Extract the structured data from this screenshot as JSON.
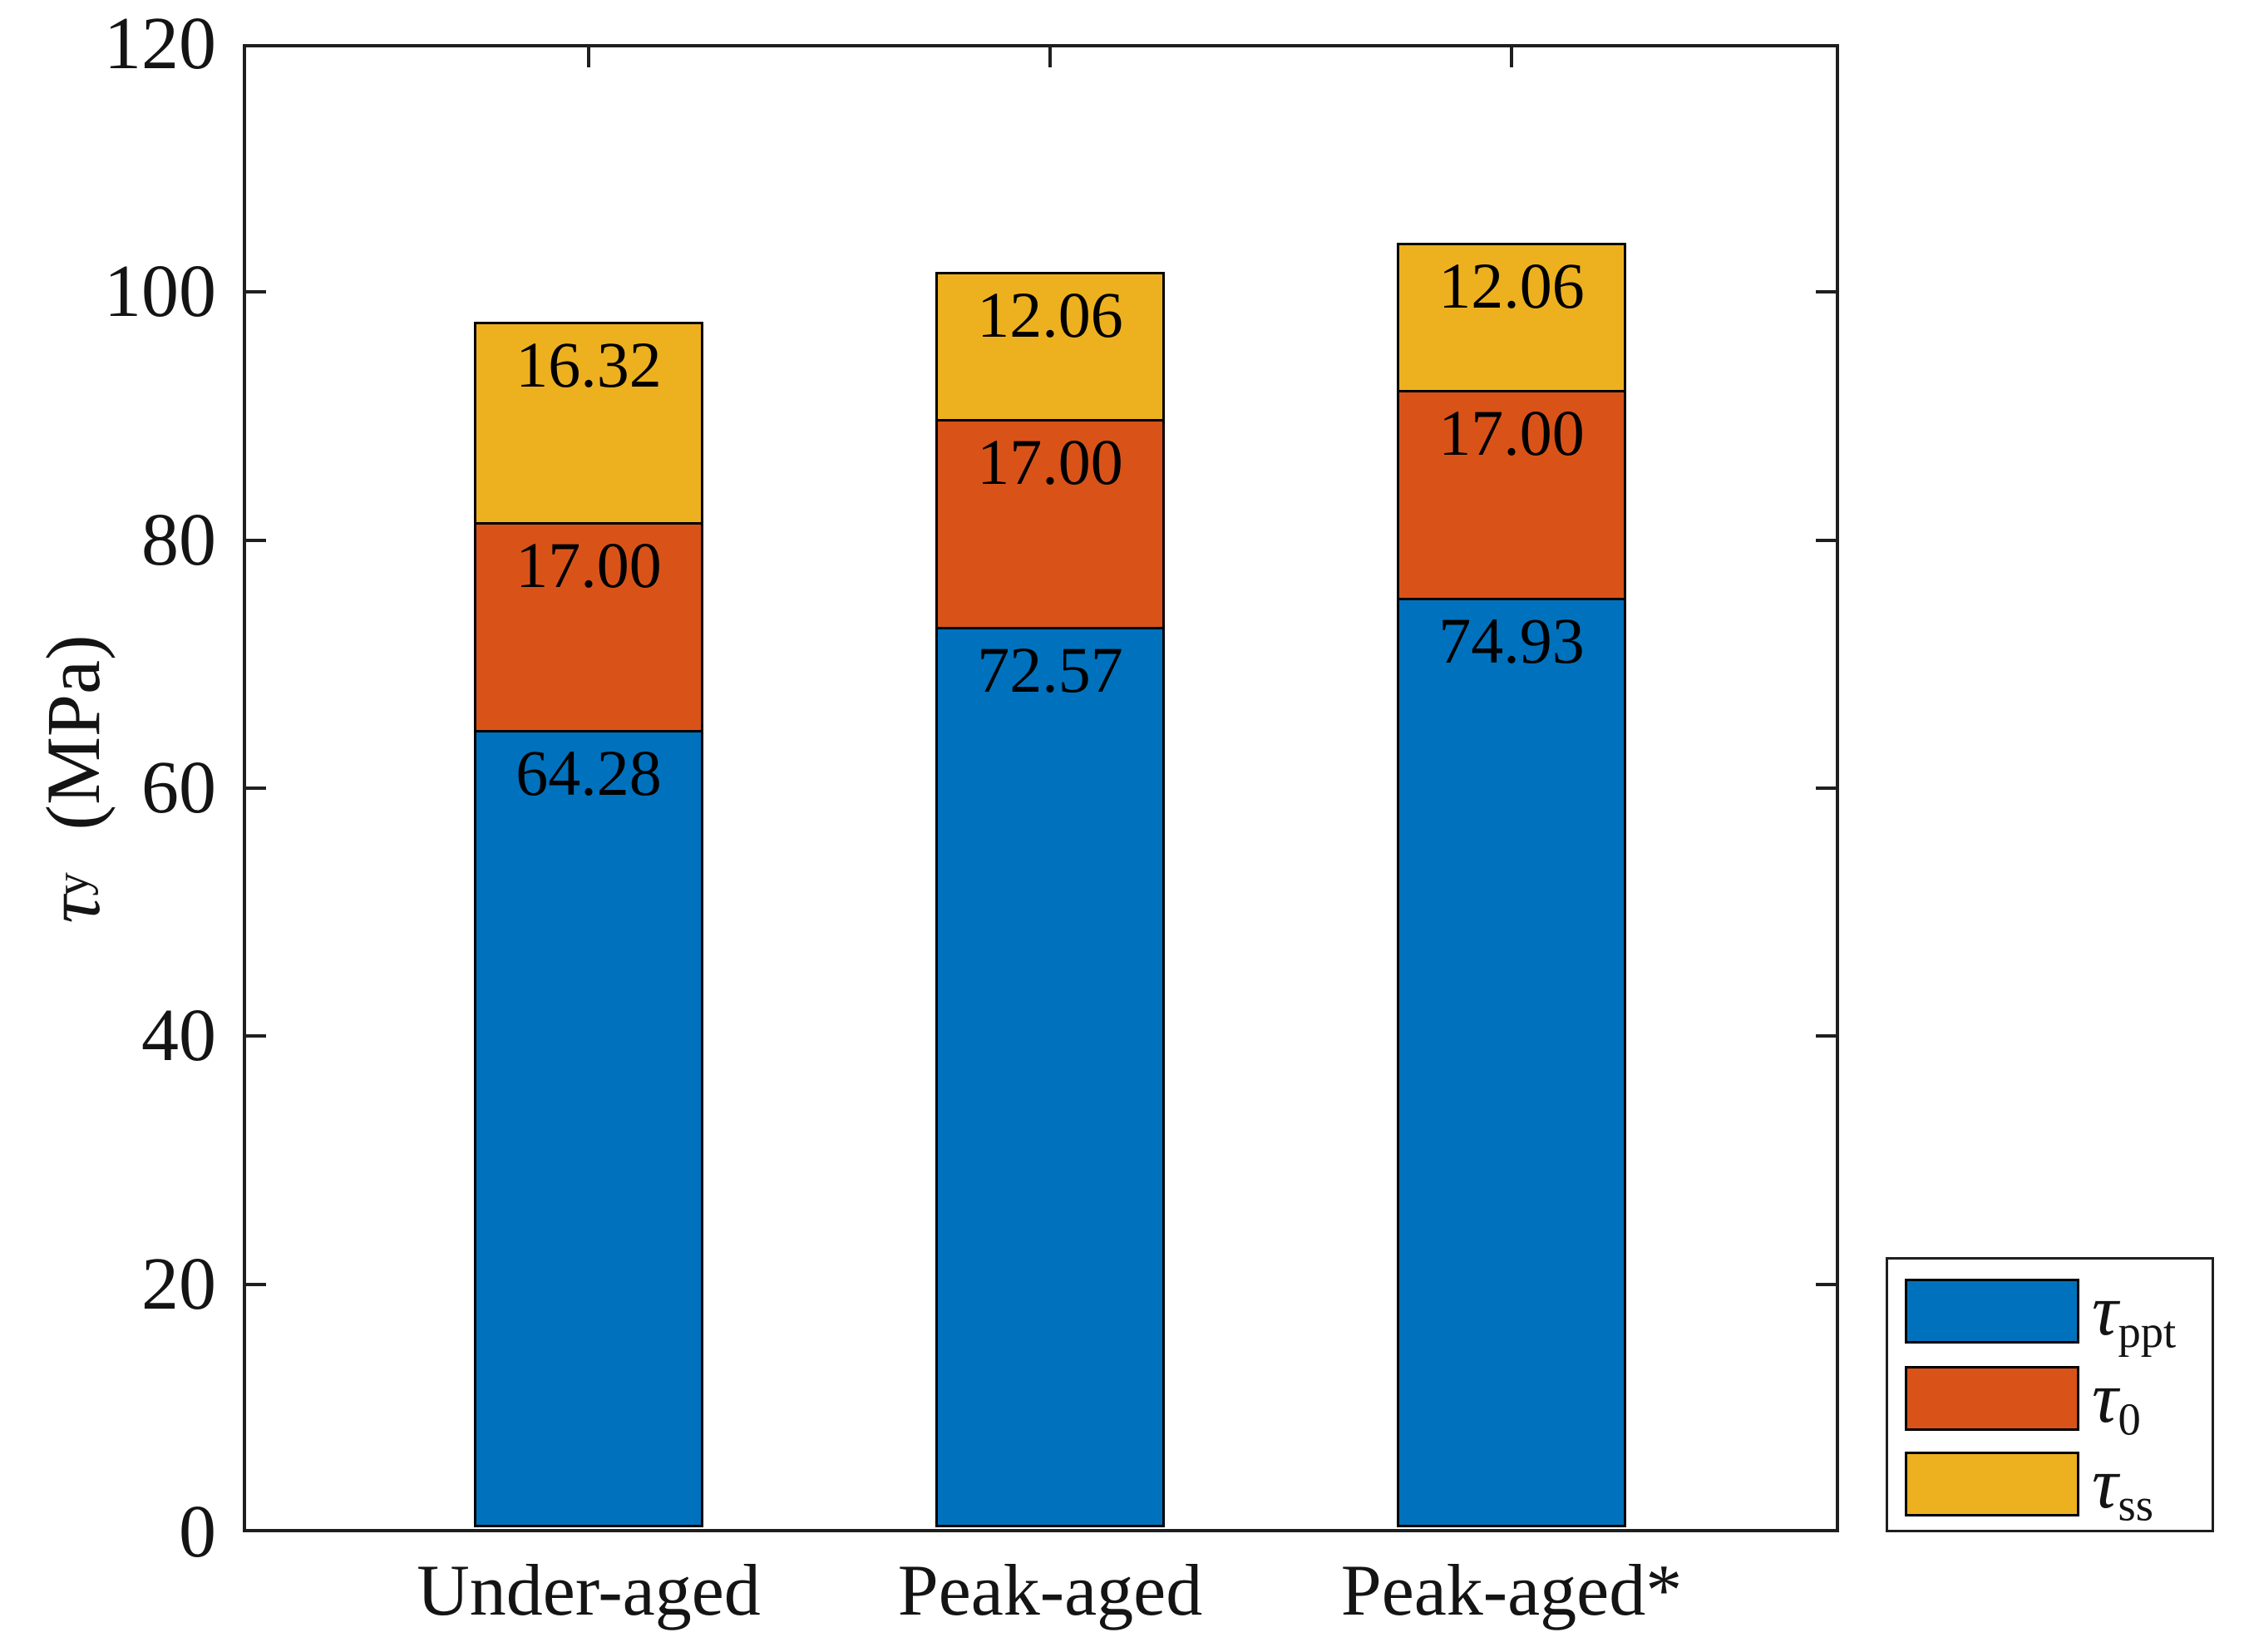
{
  "chart_data": {
    "type": "bar",
    "stacked": true,
    "title": "",
    "categories": [
      "Under-aged",
      "Peak-aged",
      "Peak-aged*"
    ],
    "series": [
      {
        "name": "tau_ppt",
        "label_base": "τ",
        "label_sub": "ppt",
        "color": "#0072BD",
        "values": [
          64.28,
          72.57,
          74.93
        ]
      },
      {
        "name": "tau_0",
        "label_base": "τ",
        "label_sub": "0",
        "color": "#D95319",
        "values": [
          17.0,
          17.0,
          17.0
        ]
      },
      {
        "name": "tau_ss",
        "label_base": "τ",
        "label_sub": "ss",
        "color": "#EDB120",
        "values": [
          16.32,
          12.06,
          12.06
        ]
      }
    ],
    "bar_totals": [
      97.6,
      101.63,
      103.99
    ],
    "value_label_decimals": 2,
    "xlabel": "",
    "ylabel": "τy (MPa)",
    "ylabel_parts": {
      "base": "τ",
      "sub": "y",
      "unit": "(MPa)"
    },
    "ylim": [
      0,
      120
    ],
    "yticks": [
      0,
      20,
      40,
      60,
      80,
      100,
      120
    ],
    "grid": false,
    "legend_position": "outside-right-bottom",
    "bar_edge_color": "#000000",
    "axis_color": "#1f1f1f",
    "background_color": "#ffffff",
    "value_label_color": "#000000"
  }
}
